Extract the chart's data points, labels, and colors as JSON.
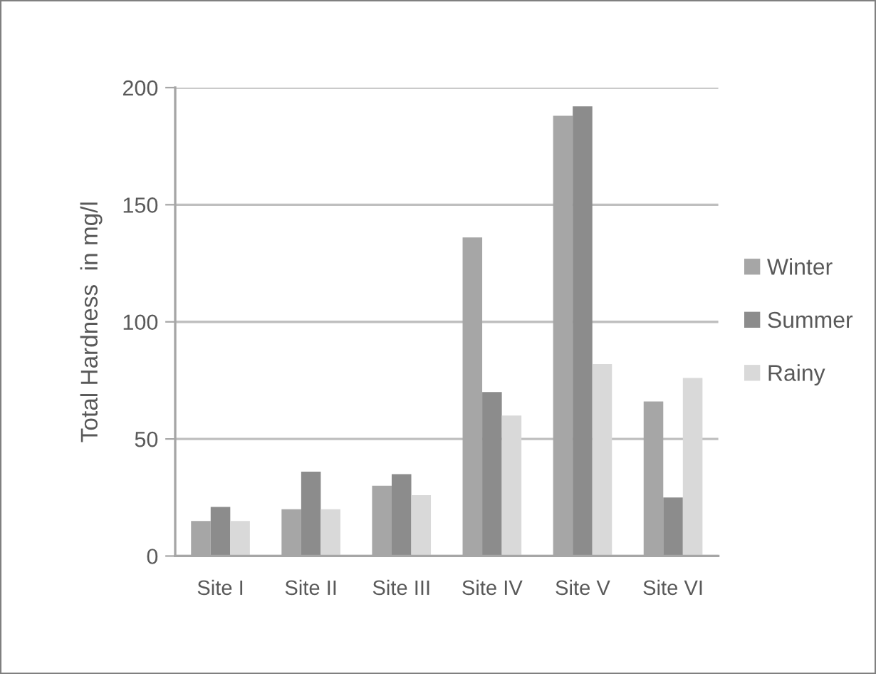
{
  "chart_data": {
    "type": "bar",
    "ylabel": "Total Hardness  in mg/l",
    "categories": [
      "Site I",
      "Site II",
      "Site III",
      "Site IV",
      "Site V",
      "Site VI"
    ],
    "series": [
      {
        "name": "Winter",
        "color": "#a6a6a6",
        "values": [
          15,
          20,
          30,
          136,
          188,
          66
        ]
      },
      {
        "name": "Summer",
        "color": "#8c8c8c",
        "values": [
          21,
          36,
          35,
          70,
          192,
          25
        ]
      },
      {
        "name": "Rainy",
        "color": "#d9d9d9",
        "values": [
          15,
          20,
          26,
          60,
          82,
          76
        ]
      }
    ],
    "ylim": [
      0,
      200
    ],
    "yticks": [
      0,
      50,
      100,
      150,
      200
    ],
    "grid": "y",
    "legend": "right"
  }
}
